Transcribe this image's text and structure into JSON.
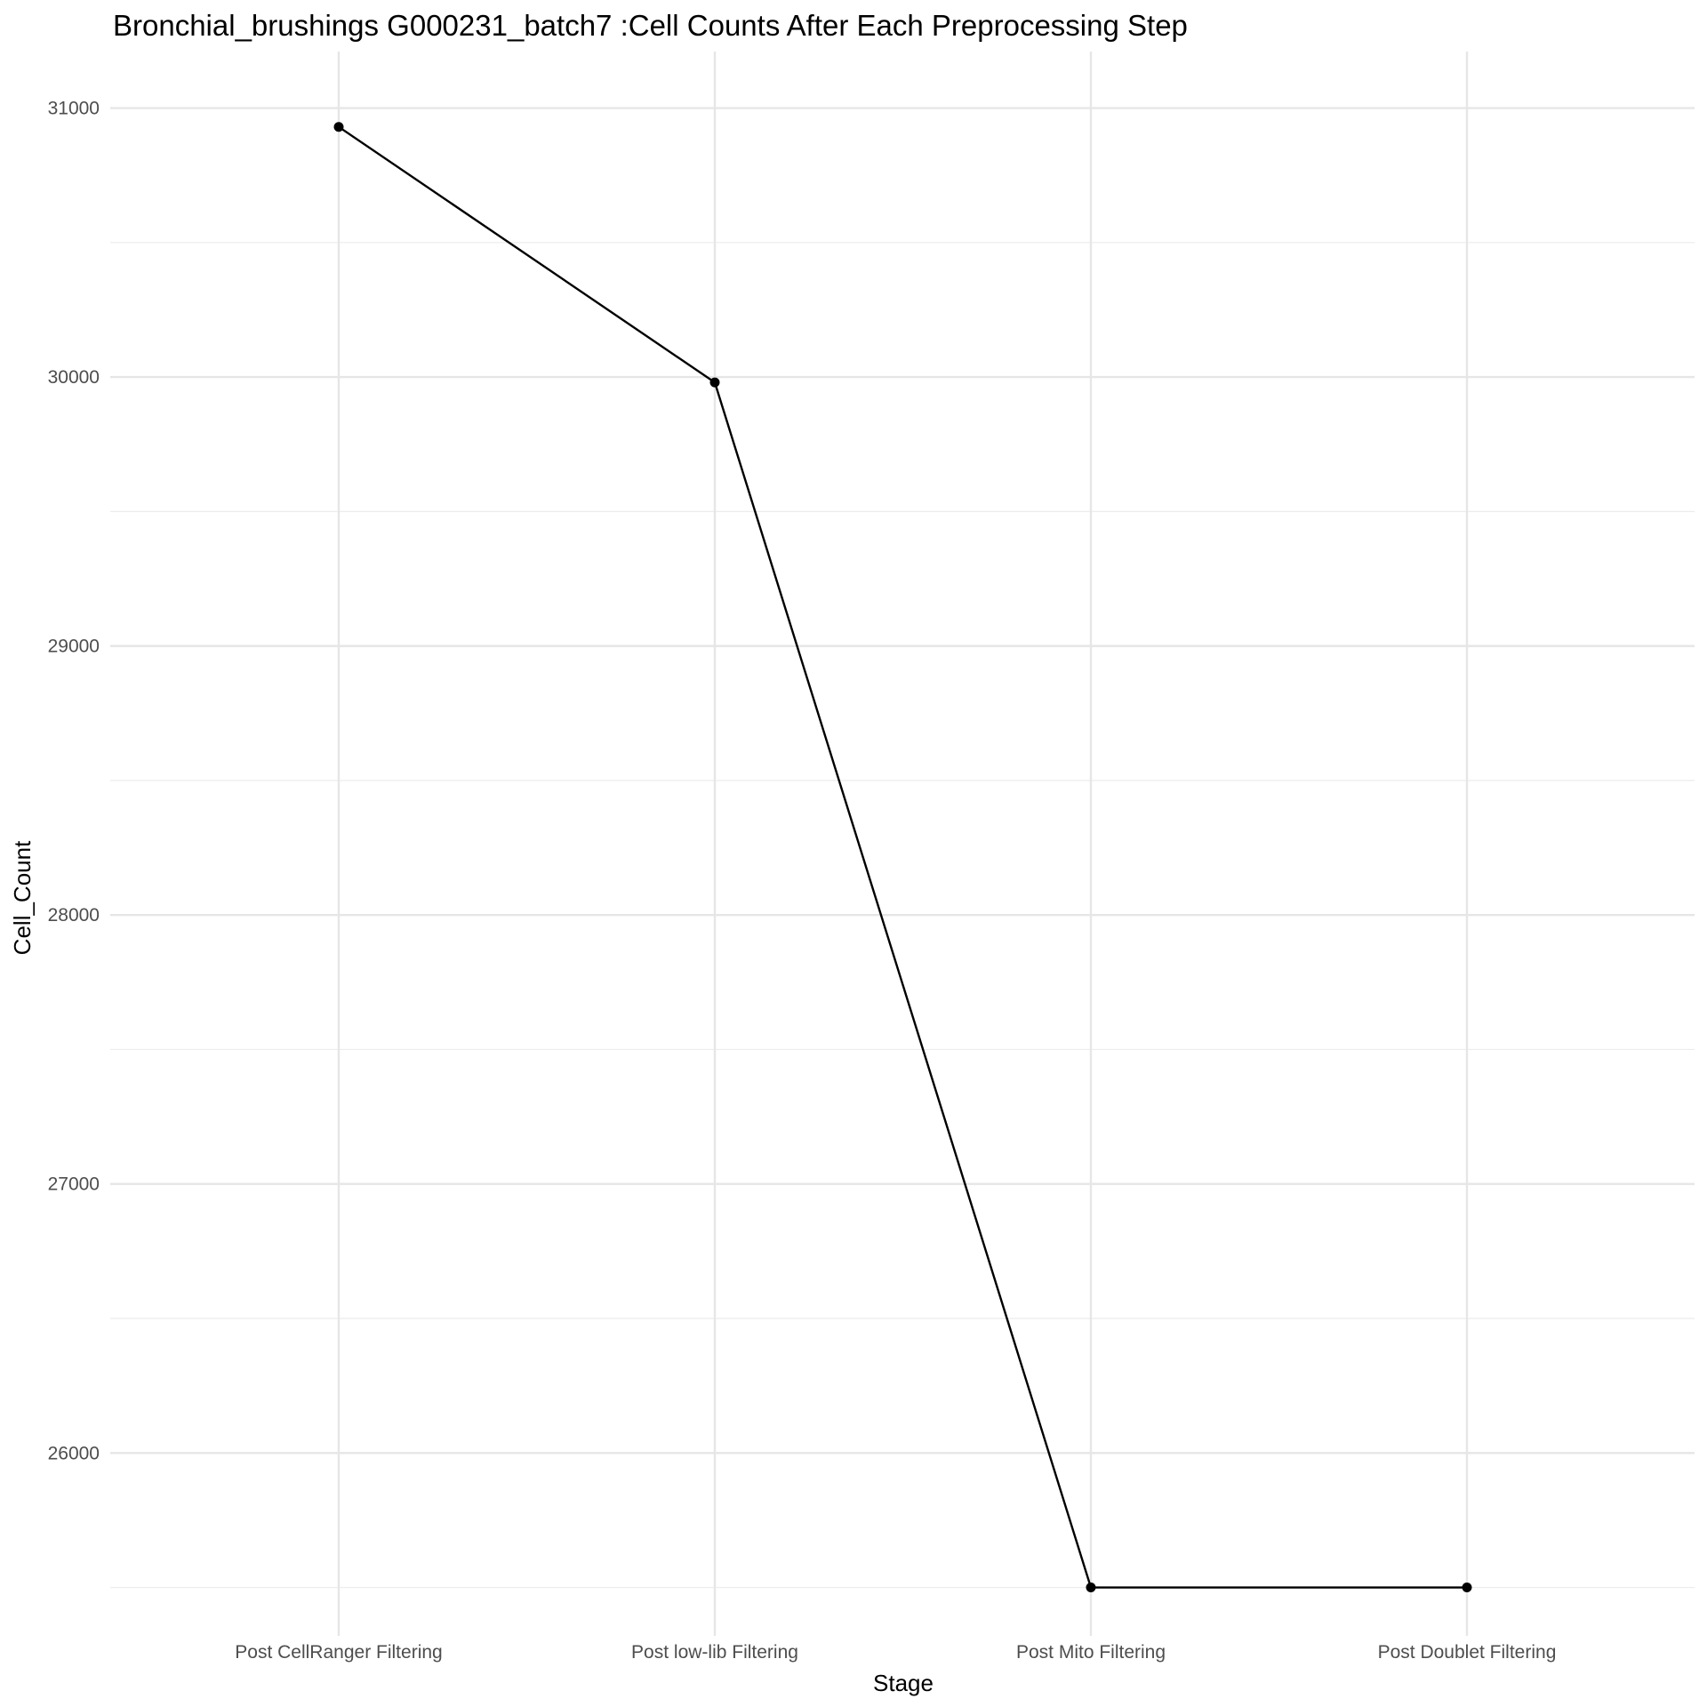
{
  "chart_data": {
    "type": "line",
    "title": "Bronchial_brushings G000231_batch7 :Cell Counts After Each Preprocessing Step",
    "xlabel": "Stage",
    "ylabel": "Cell_Count",
    "categories": [
      "Post CellRanger Filtering",
      "Post low-lib Filtering",
      "Post Mito Filtering",
      "Post Doublet Filtering"
    ],
    "values": [
      30930,
      29980,
      25500,
      25500
    ],
    "ylim": [
      25320,
      31210
    ],
    "yticks": [
      26000,
      27000,
      28000,
      29000,
      30000,
      31000
    ],
    "ytick_labels": [
      "26000",
      "27000",
      "28000",
      "29000",
      "30000",
      "31000"
    ],
    "grid": true,
    "legend": "none",
    "colors": {
      "line": "#000000",
      "grid": "#e6e6e6",
      "tick_text": "#4d4d4d"
    }
  }
}
